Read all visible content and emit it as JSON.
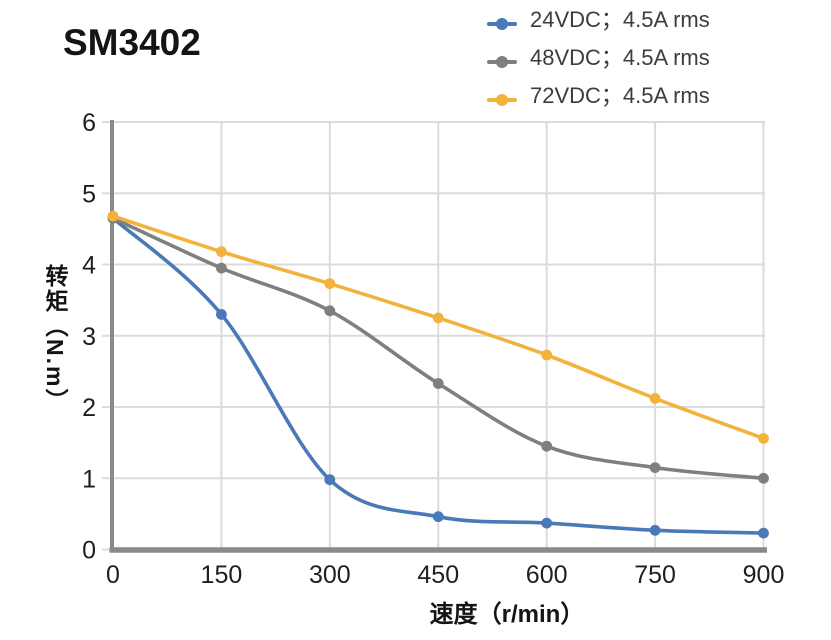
{
  "header": {
    "title": "SM3402"
  },
  "legend": {
    "position": "top-right",
    "items": [
      {
        "label": "24VDC；4.5A rms",
        "color": "#4A79B8"
      },
      {
        "label": "48VDC；4.5A rms",
        "color": "#7F7F7F"
      },
      {
        "label": "72VDC；4.5A rms",
        "color": "#F2B33D"
      }
    ]
  },
  "chart_data": {
    "type": "line",
    "title": "SM3402",
    "xlabel": "速度（r/min）",
    "ylabel": "转矩（N.m）",
    "x": [
      0,
      150,
      300,
      450,
      600,
      750,
      900
    ],
    "series": [
      {
        "name": "24VDC；4.5A rms",
        "color": "#4A79B8",
        "values": [
          4.65,
          3.3,
          0.98,
          0.46,
          0.37,
          0.27,
          0.23
        ]
      },
      {
        "name": "48VDC；4.5A rms",
        "color": "#7F7F7F",
        "values": [
          4.65,
          3.95,
          3.35,
          2.33,
          1.45,
          1.15,
          1.0
        ]
      },
      {
        "name": "72VDC；4.5A rms",
        "color": "#F2B33D",
        "values": [
          4.68,
          4.18,
          3.73,
          3.25,
          2.73,
          2.12,
          1.56
        ]
      }
    ],
    "xticks": [
      0,
      150,
      300,
      450,
      600,
      750,
      900
    ],
    "yticks": [
      0,
      1,
      2,
      3,
      4,
      5,
      6
    ],
    "xlim": [
      0,
      900
    ],
    "ylim": [
      0,
      6
    ],
    "grid": true,
    "smooth": true,
    "marker": "circle",
    "legend_position": "top-right"
  },
  "colors": {
    "axis": "#8A8A8A",
    "gridline": "#DBDBDB",
    "tick_text": "#1F1F1F",
    "legend_text": "#3D3D3D",
    "title_text": "#141414"
  }
}
